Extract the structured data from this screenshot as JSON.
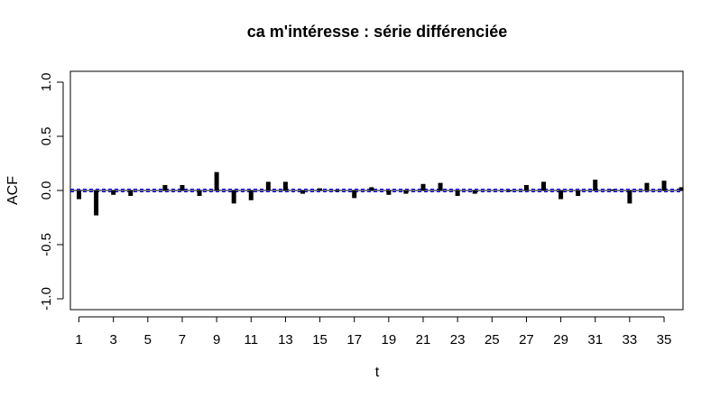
{
  "chart_data": {
    "type": "bar",
    "title": "ca m'intéresse : série différenciée",
    "xlabel": "t",
    "ylabel": "ACF",
    "xlim": [
      0.5,
      36.1
    ],
    "ylim": [
      -1.1,
      1.1
    ],
    "x_ticks": [
      1,
      3,
      5,
      7,
      9,
      11,
      13,
      15,
      17,
      19,
      21,
      23,
      25,
      27,
      29,
      31,
      33,
      35
    ],
    "x_tick_labels": [
      "1",
      "3",
      "5",
      "7",
      "9",
      "11",
      "13",
      "15",
      "17",
      "19",
      "21",
      "23",
      "25",
      "27",
      "29",
      "31",
      "33",
      "35"
    ],
    "y_ticks": [
      -1.0,
      -0.5,
      0.0,
      0.5,
      1.0
    ],
    "y_tick_labels": [
      "-1.0",
      "-0.5",
      "0.0",
      "0.5",
      "1.0"
    ],
    "confidence_band": 0.012,
    "confidence_color": "#0000ff",
    "bar_color": "#000000",
    "grid": false,
    "x": [
      1,
      2,
      3,
      4,
      5,
      6,
      7,
      8,
      9,
      10,
      11,
      12,
      13,
      14,
      15,
      16,
      17,
      18,
      19,
      20,
      21,
      22,
      23,
      24,
      25,
      26,
      27,
      28,
      29,
      30,
      31,
      32,
      33,
      34,
      35,
      36
    ],
    "values": [
      -0.08,
      -0.23,
      -0.04,
      -0.05,
      0.0,
      0.05,
      0.05,
      -0.05,
      0.17,
      -0.12,
      -0.09,
      0.08,
      0.08,
      -0.03,
      0.02,
      -0.01,
      -0.07,
      0.03,
      -0.04,
      -0.03,
      0.06,
      0.07,
      -0.05,
      -0.03,
      0.0,
      -0.01,
      0.05,
      0.08,
      -0.08,
      -0.05,
      0.1,
      0.01,
      -0.12,
      0.07,
      0.09,
      0.03
    ]
  }
}
